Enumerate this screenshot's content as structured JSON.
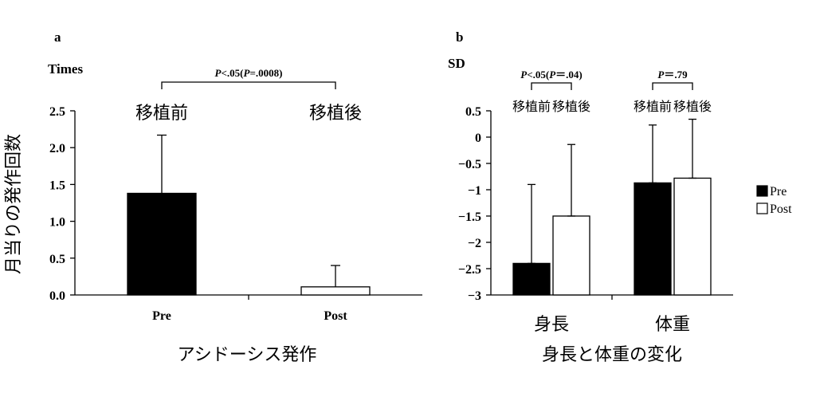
{
  "chart_data": [
    {
      "panel_label": "a",
      "type": "bar",
      "unit_label": "Times",
      "ylabel": "月当りの発作回数",
      "xlabel": "アシドーシス発作",
      "categories": [
        "Pre",
        "Post"
      ],
      "category_notes": [
        "移植前",
        "移植後"
      ],
      "values": [
        1.38,
        0.11
      ],
      "error_upper": [
        2.17,
        0.4
      ],
      "ylim": [
        0.0,
        2.5
      ],
      "yticks": [
        "0.0",
        "0.5",
        "1.0",
        "1.5",
        "2.0",
        "2.5"
      ],
      "bar_colors": [
        "#000000",
        "#ffffff"
      ],
      "significance": {
        "from": 0,
        "to": 1,
        "parts": [
          {
            "t": "P",
            "i": true
          },
          {
            "t": "<.05(",
            "i": false
          },
          {
            "t": "P",
            "i": true
          },
          {
            "t": "=.0008)",
            "i": false
          }
        ]
      }
    },
    {
      "panel_label": "b",
      "type": "bar",
      "unit_label": "SD",
      "xlabel": "身長と体重の変化",
      "groups": [
        "身長",
        "体重"
      ],
      "group_subnotes": [
        [
          "移植前",
          "移植後"
        ],
        [
          "移植前",
          "移植後"
        ]
      ],
      "series": [
        {
          "name": "Pre",
          "color": "#000000",
          "values": [
            -2.4,
            -0.87
          ],
          "error_upper": [
            -0.9,
            0.23
          ]
        },
        {
          "name": "Post",
          "color": "#ffffff",
          "values": [
            -1.5,
            -0.78
          ],
          "error_upper": [
            -0.14,
            0.34
          ]
        }
      ],
      "ylim": [
        -3,
        0.5
      ],
      "yticks": [
        "0.5",
        "0",
        "-0.5",
        "-1",
        "-1.5",
        "-2",
        "-2.5",
        "-3"
      ],
      "legend_position": "right",
      "significance": [
        {
          "group": 0,
          "parts": [
            {
              "t": "P",
              "i": true
            },
            {
              "t": "<.05(",
              "i": false
            },
            {
              "t": "P",
              "i": true
            },
            {
              "t": "＝.04)",
              "i": false
            }
          ]
        },
        {
          "group": 1,
          "parts": [
            {
              "t": "P",
              "i": true
            },
            {
              "t": "＝.79",
              "i": false
            }
          ]
        }
      ]
    }
  ]
}
